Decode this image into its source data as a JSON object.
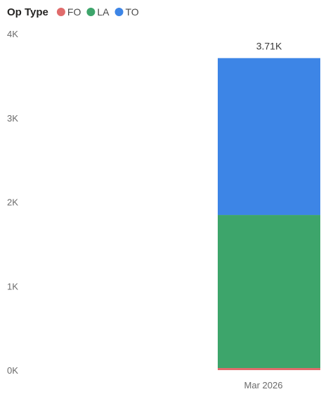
{
  "chart_data": {
    "type": "bar",
    "stacked": true,
    "legend": {
      "title": "Op Type",
      "placement": "top-left",
      "items": [
        {
          "name": "FO",
          "color": "#e06b6b"
        },
        {
          "name": "LA",
          "color": "#3da56b"
        },
        {
          "name": "TO",
          "color": "#3d85e6"
        }
      ]
    },
    "categories": [
      "Mar 2026"
    ],
    "series": [
      {
        "name": "FO",
        "values": [
          25
        ]
      },
      {
        "name": "LA",
        "values": [
          1820
        ]
      },
      {
        "name": "TO",
        "values": [
          1865
        ]
      }
    ],
    "total_labels": [
      "3.71K"
    ],
    "ylim": [
      0,
      4000
    ],
    "yticks": [
      {
        "value": 0,
        "label": "0K"
      },
      {
        "value": 1000,
        "label": "1K"
      },
      {
        "value": 2000,
        "label": "2K"
      },
      {
        "value": 3000,
        "label": "3K"
      },
      {
        "value": 4000,
        "label": "4K"
      }
    ],
    "grid": false
  }
}
